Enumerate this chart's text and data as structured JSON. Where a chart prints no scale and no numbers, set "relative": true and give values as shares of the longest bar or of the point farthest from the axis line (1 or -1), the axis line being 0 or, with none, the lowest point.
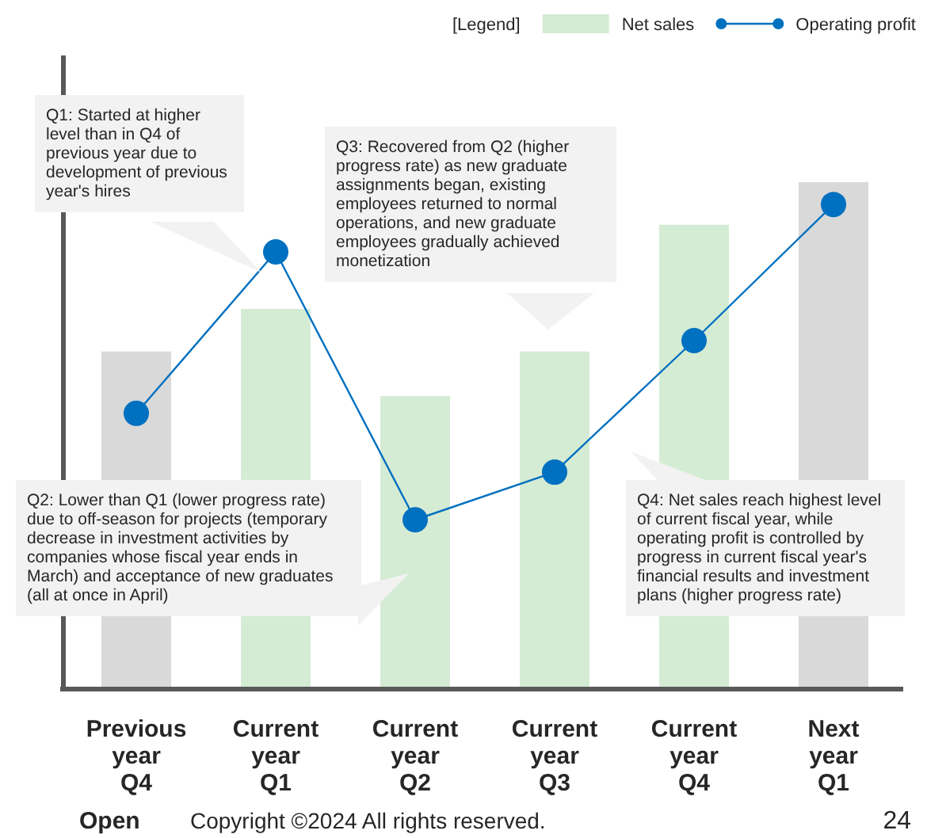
{
  "chart_data": {
    "type": "bar",
    "relative": true,
    "legend_title": "[Legend]",
    "legend": "top right",
    "categories": [
      "Previous year Q4",
      "Current year Q1",
      "Current year Q2",
      "Current year Q3",
      "Current year Q4",
      "Next year Q1"
    ],
    "series": [
      {
        "name": "Net sales",
        "type": "bar",
        "color": "#d5ecd4",
        "colors": [
          "#d9d9d9",
          "#d5ecd4",
          "#d5ecd4",
          "#d5ecd4",
          "#d5ecd4",
          "#d9d9d9"
        ],
        "values": [
          0.666,
          0.75,
          0.578,
          0.666,
          0.916,
          1
        ]
      },
      {
        "name": "Operating profit",
        "type": "line",
        "color": "#0070c0",
        "marker": "circle",
        "values": [
          0.544,
          0.8625,
          0.334,
          0.428,
          0.6875,
          0.956
        ]
      }
    ],
    "annotations": [
      "Q1: Started at higher level than in Q4 of previous year due to development of previous year's hires",
      "Q3: Recovered from Q2 (higher progress rate) as new graduate assignments began, existing employees returned to normal operations, and new graduate employees gradually achieved monetization",
      "Q2: Lower than Q1 (lower progress rate) due to off-season for projects (temporary decrease in investment activities by companies whose fiscal year ends in March) and acceptance of new graduates (all at once in April)",
      "Q4: Net sales reach highest level of current fiscal year, while operating profit is controlled by progress in current fiscal year's financial results and investment plans (higher progress rate)",
      "Open",
      "Copyright ©2024 All rights reserved.",
      "24"
    ]
  }
}
